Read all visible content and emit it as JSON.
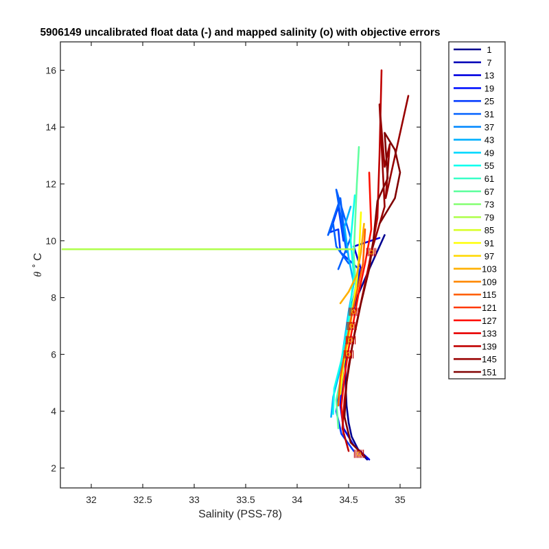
{
  "chart_data": {
    "type": "line",
    "title": "5906149 uncalibrated float data (-) and mapped salinity (o) with objective errors",
    "xlabel": "Salinity (PSS-78)",
    "ylabel_symbol": "θ",
    "ylabel_rest": "˚ C",
    "xlim": [
      31.7,
      35.2
    ],
    "ylim": [
      1.3,
      17.0
    ],
    "xticks": [
      32,
      32.5,
      33,
      33.5,
      34,
      34.5,
      35
    ],
    "xtick_labels": [
      "32",
      "32.5",
      "33",
      "33.5",
      "34",
      "34.5",
      "35"
    ],
    "yticks": [
      2,
      4,
      6,
      8,
      10,
      12,
      14,
      16
    ],
    "ytick_labels": [
      "2",
      "4",
      "6",
      "8",
      "10",
      "12",
      "14",
      "16"
    ],
    "grid": false,
    "legend_position": "outside-right",
    "colormap": "jet",
    "legend_entries": [
      "1",
      "7",
      "13",
      "19",
      "25",
      "31",
      "37",
      "43",
      "49",
      "55",
      "61",
      "67",
      "73",
      "79",
      "85",
      "91",
      "97",
      "103",
      "109",
      "115",
      "121",
      "127",
      "133",
      "139",
      "145",
      "151"
    ],
    "legend_colors": [
      "#000090",
      "#0000b8",
      "#0000e0",
      "#0010ff",
      "#0038ff",
      "#0060ff",
      "#0088ff",
      "#00b0ff",
      "#00d8ff",
      "#10ffef",
      "#38ffc7",
      "#60ff9f",
      "#88ff77",
      "#b0ff4f",
      "#d8ff27",
      "#ffff00",
      "#ffd800",
      "#ffb000",
      "#ff8800",
      "#ff6000",
      "#ff3800",
      "#ff1000",
      "#e80000",
      "#c00000",
      "#980000",
      "#800000"
    ],
    "profiles": [
      {
        "name": "1",
        "color": "#000090",
        "points": [
          [
            34.68,
            2.3
          ],
          [
            34.6,
            2.6
          ],
          [
            34.53,
            3.1
          ],
          [
            34.5,
            3.6
          ],
          [
            34.48,
            4.2
          ],
          [
            34.47,
            5.0
          ],
          [
            34.47,
            6.0
          ],
          [
            34.5,
            7.0
          ],
          [
            34.58,
            8.0
          ],
          [
            34.7,
            9.0
          ],
          [
            34.85,
            10.2
          ]
        ]
      },
      {
        "name": "13",
        "color": "#0000e0",
        "points": [
          [
            34.7,
            2.3
          ],
          [
            34.55,
            2.8
          ],
          [
            34.45,
            3.4
          ],
          [
            34.42,
            4.2
          ],
          [
            34.44,
            5.2
          ],
          [
            34.47,
            6.2
          ],
          [
            34.5,
            7.2
          ],
          [
            34.56,
            8.2
          ],
          [
            34.62,
            9.0
          ],
          [
            34.55,
            9.8
          ],
          [
            34.8,
            10.1
          ]
        ]
      },
      {
        "name": "25",
        "color": "#0038ff",
        "points": [
          [
            34.55,
            2.6
          ],
          [
            34.43,
            3.2
          ],
          [
            34.38,
            4.0
          ],
          [
            34.42,
            5.0
          ],
          [
            34.46,
            6.0
          ],
          [
            34.5,
            7.0
          ],
          [
            34.55,
            8.0
          ],
          [
            34.6,
            9.0
          ],
          [
            34.42,
            9.6
          ],
          [
            34.4,
            10.4
          ],
          [
            34.32,
            10.3
          ],
          [
            34.4,
            11.2
          ],
          [
            34.45,
            10.0
          ]
        ]
      },
      {
        "name": "31",
        "color": "#0060ff",
        "points": [
          [
            34.5,
            9.2
          ],
          [
            34.38,
            9.8
          ],
          [
            34.35,
            10.6
          ],
          [
            34.3,
            10.2
          ],
          [
            34.42,
            11.5
          ],
          [
            34.48,
            9.6
          ],
          [
            34.38,
            11.8
          ],
          [
            34.52,
            10.1
          ],
          [
            34.4,
            9.0
          ]
        ]
      },
      {
        "name": "43",
        "color": "#00b0ff",
        "points": [
          [
            34.33,
            3.8
          ],
          [
            34.35,
            4.5
          ],
          [
            34.42,
            5.5
          ],
          [
            34.46,
            6.5
          ],
          [
            34.5,
            7.5
          ],
          [
            34.55,
            8.5
          ],
          [
            34.5,
            9.4
          ],
          [
            34.46,
            10.5
          ],
          [
            34.52,
            11.2
          ]
        ]
      },
      {
        "name": "55",
        "color": "#10ffef",
        "points": [
          [
            34.35,
            3.9
          ],
          [
            34.36,
            4.8
          ],
          [
            34.43,
            5.8
          ],
          [
            34.48,
            6.8
          ],
          [
            34.52,
            7.8
          ],
          [
            34.55,
            8.8
          ],
          [
            34.52,
            10.0
          ],
          [
            34.56,
            11.6
          ]
        ]
      },
      {
        "name": "67",
        "color": "#60ff9f",
        "points": [
          [
            34.4,
            3.4
          ],
          [
            34.38,
            4.4
          ],
          [
            34.44,
            5.4
          ],
          [
            34.48,
            6.4
          ],
          [
            34.52,
            7.4
          ],
          [
            34.57,
            8.4
          ],
          [
            34.55,
            9.5
          ],
          [
            34.58,
            12.0
          ],
          [
            34.6,
            13.3
          ]
        ]
      },
      {
        "name": "79",
        "color": "#b0ff4f",
        "points": [
          [
            31.72,
            9.7
          ],
          [
            34.38,
            9.7
          ],
          [
            34.55,
            9.7
          ]
        ]
      },
      {
        "name": "91",
        "color": "#ffff00",
        "points": [
          [
            34.42,
            4.6
          ],
          [
            34.45,
            5.6
          ],
          [
            34.5,
            6.6
          ],
          [
            34.54,
            7.6
          ],
          [
            34.58,
            8.6
          ],
          [
            34.6,
            9.4
          ],
          [
            34.62,
            11.0
          ]
        ]
      },
      {
        "name": "103",
        "color": "#ffb000",
        "points": [
          [
            34.42,
            7.8
          ],
          [
            34.5,
            8.2
          ],
          [
            34.58,
            8.8
          ],
          [
            34.62,
            9.6
          ],
          [
            34.65,
            10.6
          ]
        ]
      },
      {
        "name": "115",
        "color": "#ff6000",
        "points": [
          [
            34.4,
            4.2
          ],
          [
            34.42,
            5.2
          ],
          [
            34.47,
            6.2
          ],
          [
            34.52,
            7.2
          ],
          [
            34.58,
            8.2
          ],
          [
            34.64,
            9.2
          ],
          [
            34.66,
            10.4
          ]
        ]
      },
      {
        "name": "127",
        "color": "#ff1000",
        "points": [
          [
            34.45,
            3.2
          ],
          [
            34.43,
            4.2
          ],
          [
            34.46,
            5.2
          ],
          [
            34.5,
            6.2
          ],
          [
            34.55,
            7.2
          ],
          [
            34.6,
            8.2
          ],
          [
            34.66,
            9.2
          ],
          [
            34.72,
            10.4
          ],
          [
            34.7,
            12.4
          ]
        ]
      },
      {
        "name": "139",
        "color": "#c00000",
        "points": [
          [
            34.5,
            2.6
          ],
          [
            34.44,
            3.4
          ],
          [
            34.46,
            4.4
          ],
          [
            34.5,
            5.6
          ],
          [
            34.56,
            6.8
          ],
          [
            34.63,
            8.0
          ],
          [
            34.7,
            9.2
          ],
          [
            34.78,
            10.8
          ],
          [
            34.8,
            13.0
          ],
          [
            34.82,
            16.0
          ]
        ]
      },
      {
        "name": "145",
        "color": "#980000",
        "points": [
          [
            34.72,
            9.6
          ],
          [
            34.85,
            11.2
          ],
          [
            34.8,
            14.8
          ],
          [
            34.85,
            12.6
          ],
          [
            34.9,
            13.4
          ],
          [
            34.86,
            11.5
          ],
          [
            35.08,
            15.1
          ]
        ]
      },
      {
        "name": "151",
        "color": "#800000",
        "points": [
          [
            34.66,
            2.4
          ],
          [
            34.52,
            2.9
          ],
          [
            34.46,
            3.8
          ],
          [
            34.48,
            5.0
          ],
          [
            34.54,
            6.4
          ],
          [
            34.62,
            7.8
          ],
          [
            34.7,
            9.0
          ],
          [
            34.74,
            10.0
          ],
          [
            34.78,
            11.4
          ],
          [
            34.88,
            12.2
          ],
          [
            34.85,
            13.8
          ],
          [
            34.95,
            13.2
          ],
          [
            35.0,
            12.4
          ],
          [
            34.95,
            11.5
          ],
          [
            34.8,
            10.6
          ]
        ]
      }
    ],
    "mapped_clusters": [
      {
        "s": 34.5,
        "t": 6.0,
        "color": "#c00000"
      },
      {
        "s": 34.52,
        "t": 6.5,
        "color": "#c00000"
      },
      {
        "s": 34.53,
        "t": 7.0,
        "color": "#c00000"
      },
      {
        "s": 34.55,
        "t": 7.5,
        "color": "#c00000"
      },
      {
        "s": 34.6,
        "t": 2.5,
        "color": "#c00000"
      },
      {
        "s": 34.72,
        "t": 9.6,
        "color": "#c00000"
      }
    ]
  }
}
